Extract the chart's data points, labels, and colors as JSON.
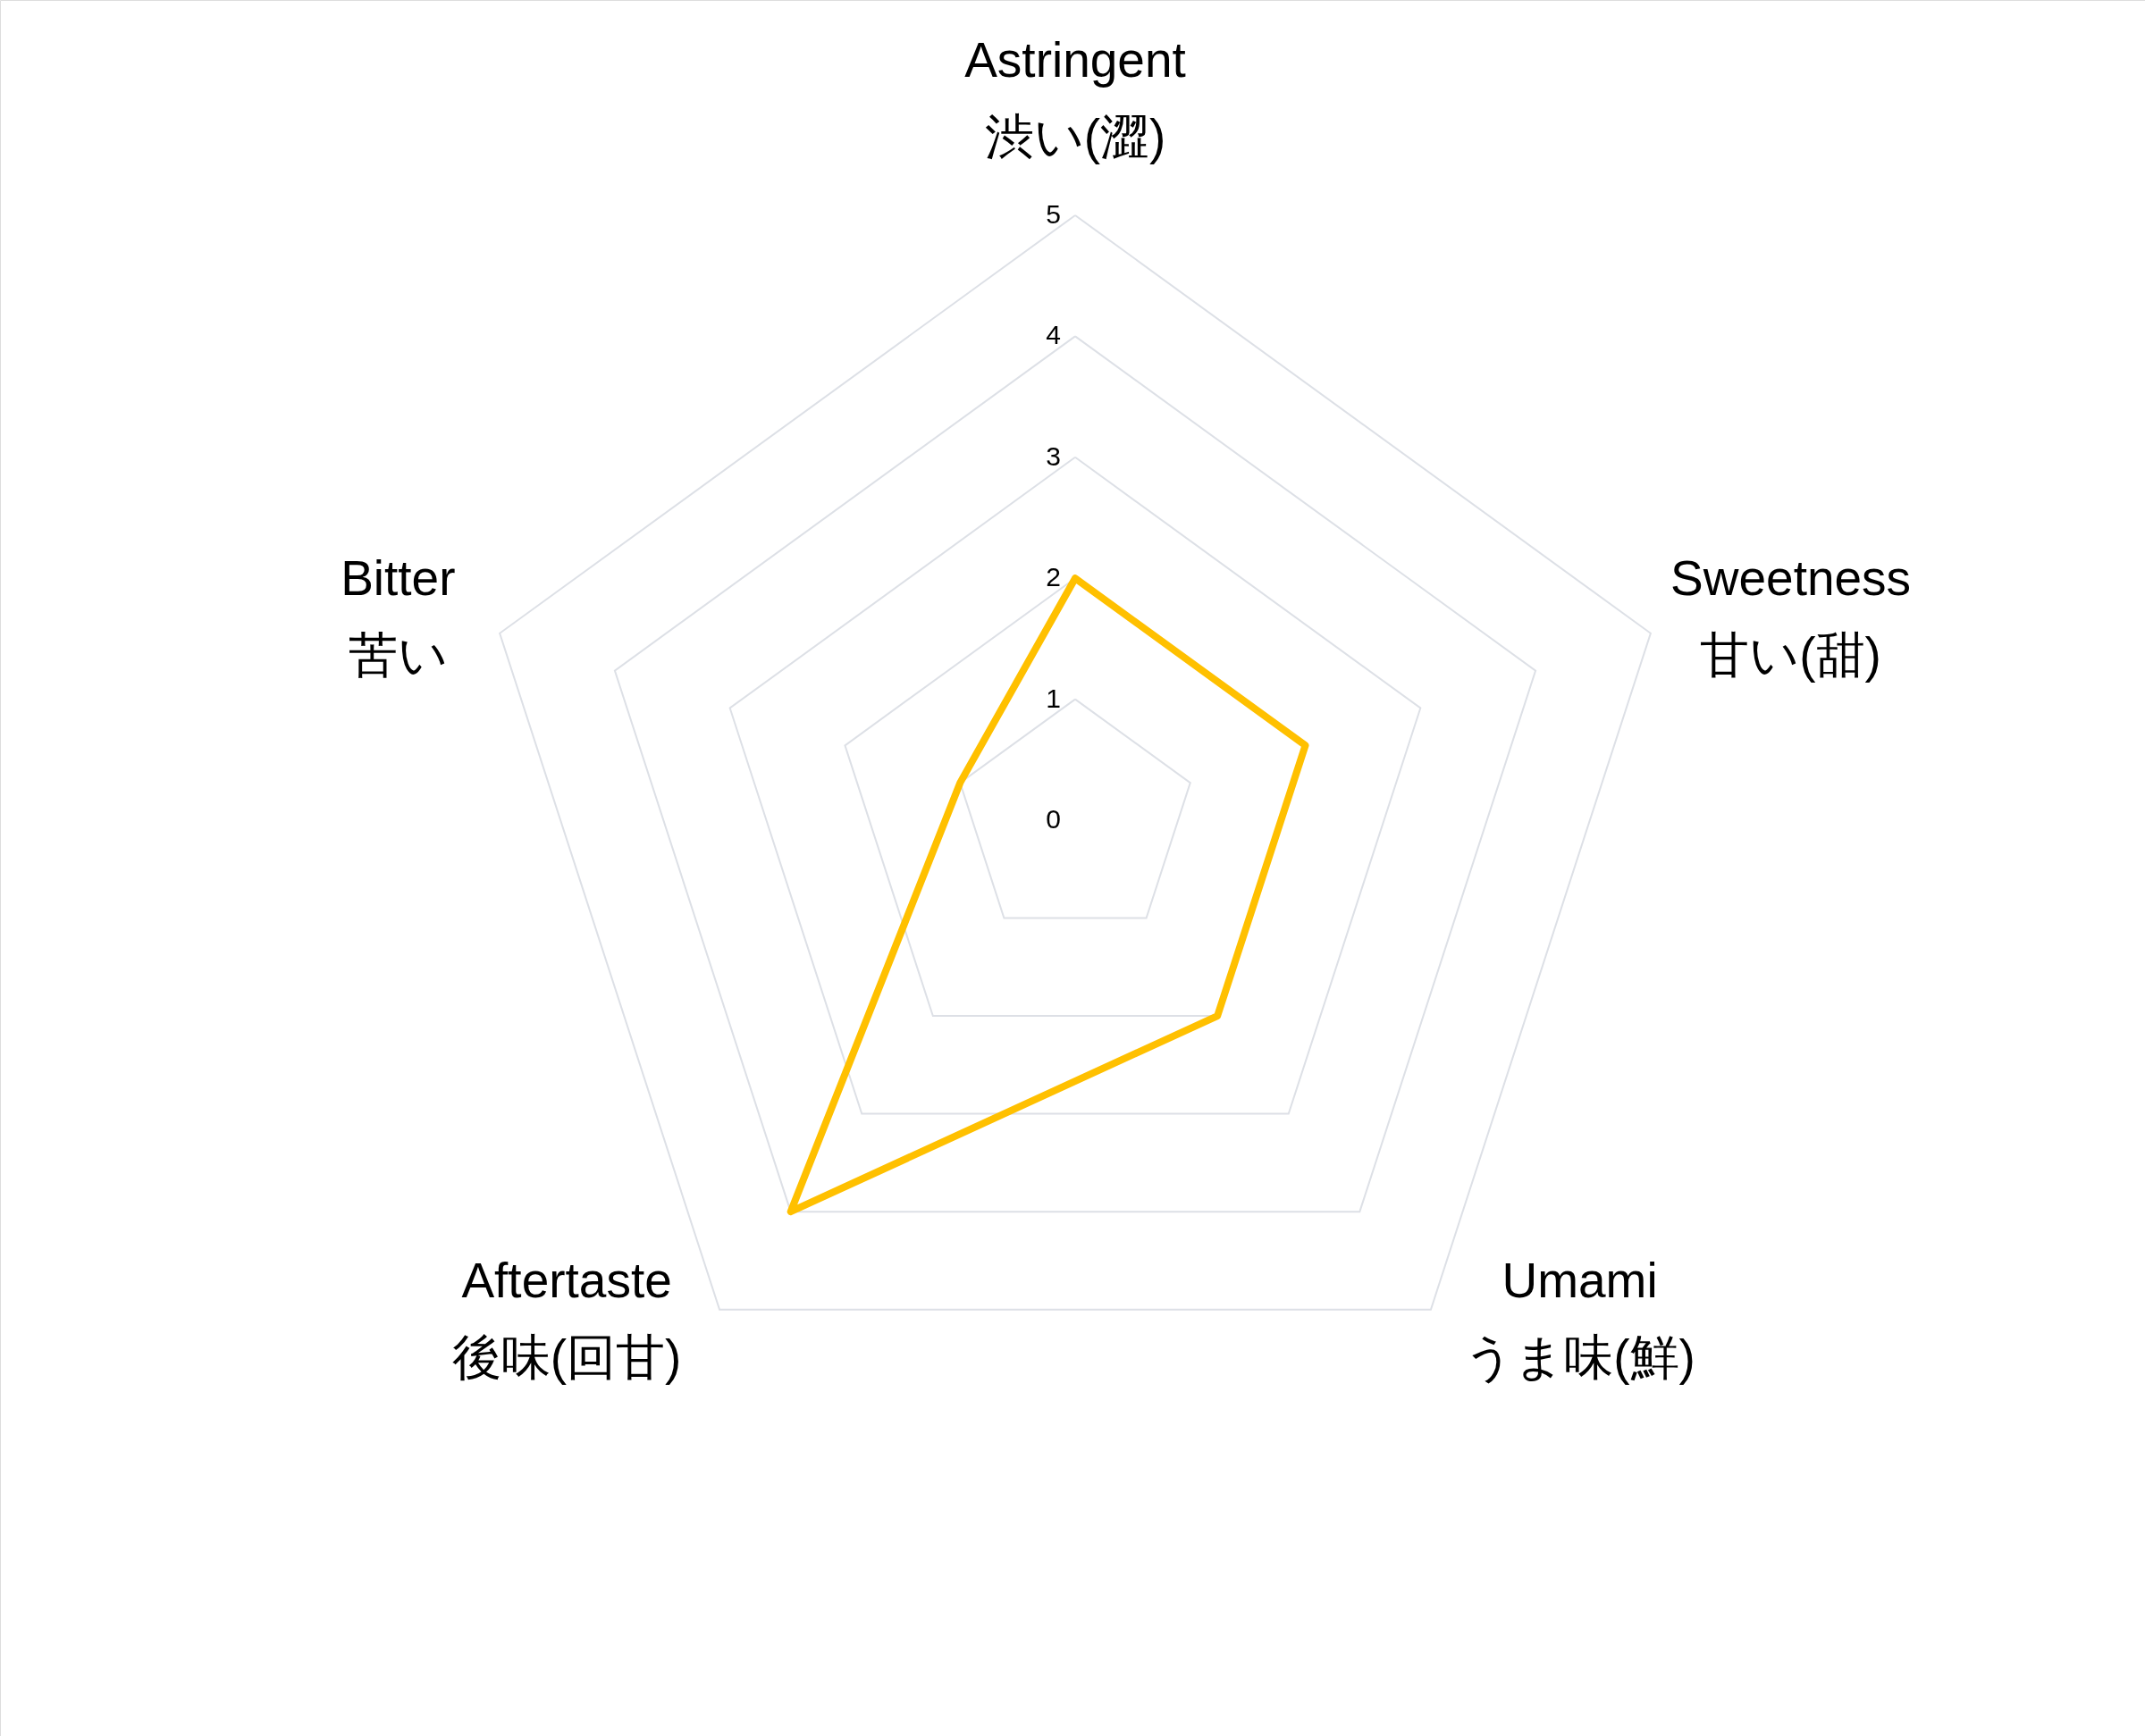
{
  "chart_data": {
    "type": "radar",
    "categories": [
      "Astringent\n渋い(澀)",
      "Sweetness\n甘い(甜)",
      "Umami\nうま味(鮮)",
      "Aftertaste\n後味(回甘)",
      "Bitter\n苦い"
    ],
    "series": [
      {
        "color": "#ffc000",
        "values": [
          2,
          2,
          2,
          4,
          1
        ]
      }
    ],
    "ylim": [
      0,
      5
    ],
    "yticks": [
      0,
      1,
      2,
      3,
      4,
      5
    ],
    "grid": true
  }
}
